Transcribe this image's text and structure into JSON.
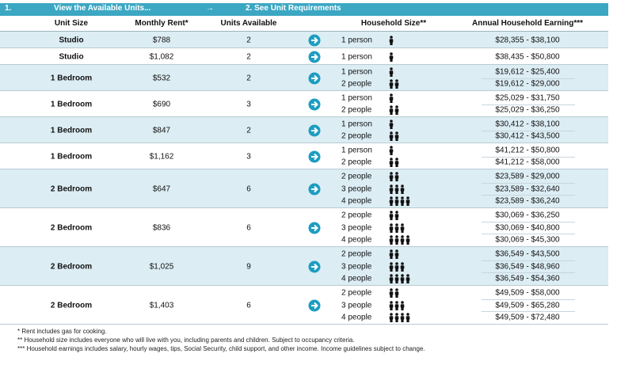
{
  "header": {
    "step1_number": "1.",
    "step1_label": "View the Available Units...",
    "arrow": "→",
    "step2_label": "2.  See Unit Requirements"
  },
  "table": {
    "columns": [
      "Unit Size",
      "Monthly Rent*",
      "Units Available",
      "Household Size**",
      "Annual Household Earning***"
    ],
    "rows": [
      {
        "unit_size": "Studio",
        "rent": "$788",
        "units": "2",
        "household": [
          {
            "size": "1 person",
            "earning": "$28,355 - $38,100"
          }
        ]
      },
      {
        "unit_size": "Studio",
        "rent": "$1,082",
        "units": "2",
        "household": [
          {
            "size": "1 person",
            "earning": "$38,435 - $50,800"
          }
        ]
      },
      {
        "unit_size": "1 Bedroom",
        "rent": "$532",
        "units": "2",
        "household": [
          {
            "size": "1 person",
            "earning": "$19,612 - $25,400"
          },
          {
            "size": "2 people",
            "earning": "$19,612 - $29,000"
          }
        ]
      },
      {
        "unit_size": "1 Bedroom",
        "rent": "$690",
        "units": "3",
        "household": [
          {
            "size": "1 person",
            "earning": "$25,029 - $31,750"
          },
          {
            "size": "2 people",
            "earning": "$25,029 - $36,250"
          }
        ]
      },
      {
        "unit_size": "1 Bedroom",
        "rent": "$847",
        "units": "2",
        "household": [
          {
            "size": "1 person",
            "earning": "$30,412 - $38,100"
          },
          {
            "size": "2 people",
            "earning": "$30,412 - $43,500"
          }
        ]
      },
      {
        "unit_size": "1 Bedroom",
        "rent": "$1,162",
        "units": "3",
        "household": [
          {
            "size": "1 person",
            "earning": "$41,212 - $50,800"
          },
          {
            "size": "2 people",
            "earning": "$41,212 - $58,000"
          }
        ]
      },
      {
        "unit_size": "2 Bedroom",
        "rent": "$647",
        "units": "6",
        "household": [
          {
            "size": "2 people",
            "earning": "$23,589 - $29,000"
          },
          {
            "size": "3 people",
            "earning": "$23,589 - $32,640"
          },
          {
            "size": "4 people",
            "earning": "$23,589 - $36,240"
          }
        ]
      },
      {
        "unit_size": "2 Bedroom",
        "rent": "$836",
        "units": "6",
        "household": [
          {
            "size": "2 people",
            "earning": "$30,069 - $36,250"
          },
          {
            "size": "3 people",
            "earning": "$30,069 - $40,800"
          },
          {
            "size": "4 people",
            "earning": "$30,069 - $45,300"
          }
        ]
      },
      {
        "unit_size": "2 Bedroom",
        "rent": "$1,025",
        "units": "9",
        "household": [
          {
            "size": "2 people",
            "earning": "$36,549 - $43,500"
          },
          {
            "size": "3 people",
            "earning": "$36,549 - $48,960"
          },
          {
            "size": "4 people",
            "earning": "$36,549 - $54,360"
          }
        ]
      },
      {
        "unit_size": "2 Bedroom",
        "rent": "$1,403",
        "units": "6",
        "household": [
          {
            "size": "2 people",
            "earning": "$49,509 - $58,000"
          },
          {
            "size": "3 people",
            "earning": "$49,509 - $65,280"
          },
          {
            "size": "4 people",
            "earning": "$49,509 - $72,480"
          }
        ]
      }
    ]
  },
  "footnotes": [
    "* Rent includes gas for cooking.",
    "** Household size includes everyone who will live with you, including parents and children. Subject to occupancy criteria.",
    "*** Household earnings includes salary, hourly wages, tips, Social Security, child support, and other income. Income guidelines subject to change."
  ]
}
